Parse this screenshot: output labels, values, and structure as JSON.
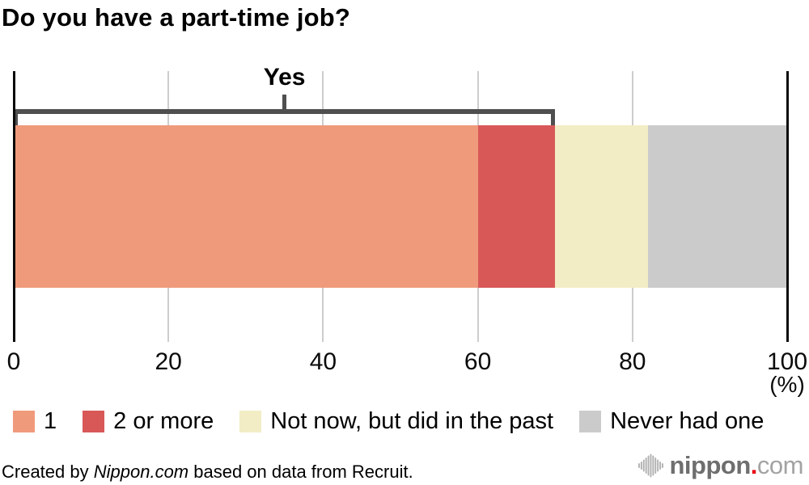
{
  "title": "Do you have a part-time job?",
  "chart_data": {
    "type": "bar",
    "stacked": true,
    "orientation": "horizontal",
    "title": "Do you have a part-time job?",
    "unit_label": "(%)",
    "xlim": [
      0,
      100
    ],
    "x_ticks": [
      0,
      20,
      40,
      60,
      80,
      100
    ],
    "grid": true,
    "legend_position": "bottom",
    "series": [
      {
        "name": "1",
        "value": 60,
        "color": "#f09a7c"
      },
      {
        "name": "2 or more",
        "value": 10,
        "color": "#d85858"
      },
      {
        "name": "Not now, but did in the past",
        "value": 12,
        "color": "#f2edc4"
      },
      {
        "name": "Never had one",
        "value": 18,
        "color": "#cbcbcb"
      }
    ],
    "annotation": {
      "label": "Yes",
      "from": 0,
      "to": 70
    }
  },
  "palette": {
    "axis_edge_line": "#0a0a0a",
    "gridline": "#cdcdcd",
    "bracket": "#4f4f4f",
    "background": "#ffffff"
  },
  "footer": {
    "credit_prefix": "Created by ",
    "credit_source": "Nippon.com",
    "credit_suffix": " based on data from Recruit."
  },
  "logo": {
    "name": "nippon",
    "dot": ".",
    "tld": "com"
  }
}
